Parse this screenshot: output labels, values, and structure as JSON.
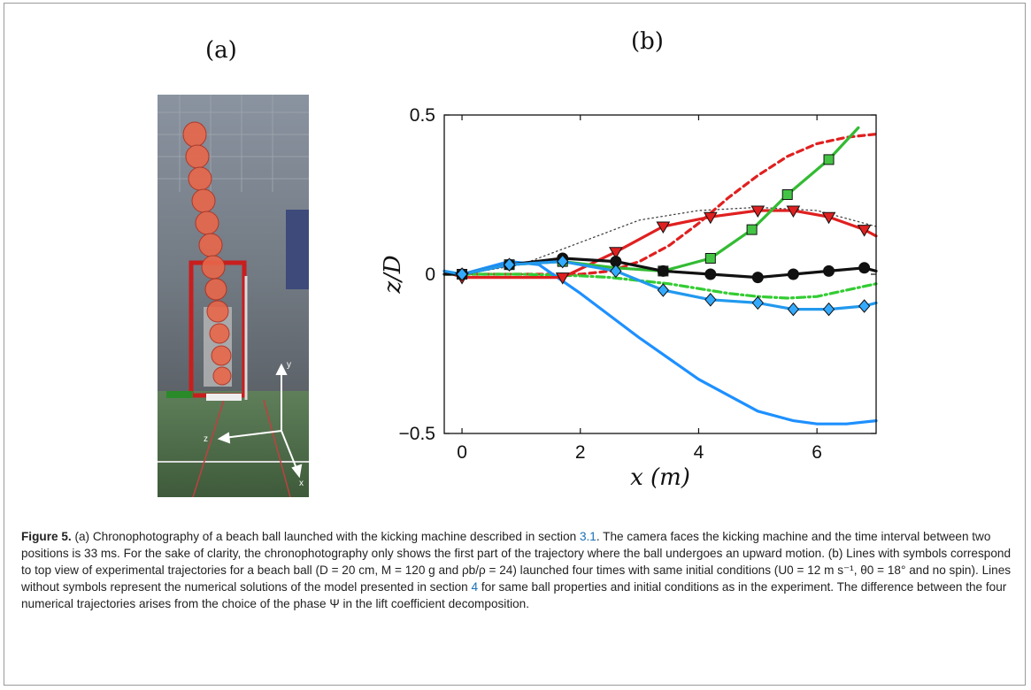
{
  "figure": {
    "panel_a_label": "(a)",
    "panel_b_label": "(b)",
    "photo": {
      "axis_y": "y",
      "axis_z": "z",
      "axis_x": "x"
    }
  },
  "chart_data": {
    "type": "line",
    "xlabel": "x (m)",
    "ylabel": "z/D",
    "xlim": [
      -0.3,
      7
    ],
    "ylim": [
      -0.5,
      0.5
    ],
    "xticks": [
      0,
      2,
      4,
      6
    ],
    "yticks": [
      -0.5,
      0,
      0.5
    ],
    "xtick_labels": [
      "0",
      "2",
      "4",
      "6"
    ],
    "ytick_labels": [
      "−0.5",
      "0",
      "0.5"
    ],
    "grid": false,
    "series": [
      {
        "kind": "model",
        "color": "#444444",
        "dash": "dotted",
        "marker": "none",
        "x": [
          0,
          1,
          2,
          3,
          4,
          5,
          6,
          7
        ],
        "y": [
          0,
          0.03,
          0.1,
          0.17,
          0.2,
          0.21,
          0.2,
          0.15
        ]
      },
      {
        "kind": "model",
        "color": "#e02020",
        "dash": "dashed",
        "marker": "none",
        "x": [
          0,
          1,
          2,
          2.5,
          3,
          3.5,
          4,
          4.5,
          5,
          5.5,
          6,
          6.5,
          7
        ],
        "y": [
          0,
          0,
          0,
          0.01,
          0.04,
          0.09,
          0.16,
          0.24,
          0.31,
          0.37,
          0.41,
          0.43,
          0.44
        ]
      },
      {
        "kind": "model",
        "color": "#33cc33",
        "dash": "dashdot",
        "marker": "none",
        "x": [
          0,
          1,
          2,
          2.5,
          3,
          3.5,
          4,
          4.5,
          5,
          5.5,
          6,
          6.5,
          7
        ],
        "y": [
          0,
          0,
          -0.005,
          -0.01,
          -0.02,
          -0.03,
          -0.045,
          -0.06,
          -0.07,
          -0.075,
          -0.07,
          -0.05,
          -0.03
        ]
      },
      {
        "kind": "model",
        "color": "#1e90ff",
        "dash": "solid",
        "marker": "none",
        "x": [
          0,
          0.8,
          1.3,
          2,
          3,
          4,
          5,
          5.6,
          6,
          6.5,
          7
        ],
        "y": [
          0,
          0.04,
          0.03,
          -0.06,
          -0.2,
          -0.33,
          -0.43,
          -0.46,
          -0.47,
          -0.47,
          -0.46
        ]
      },
      {
        "kind": "experiment",
        "color": "#e02020",
        "dash": "solid",
        "marker": "triangle-down",
        "x": [
          -0.3,
          0,
          0.8,
          1.7,
          2.6,
          3.4,
          4.2,
          5,
          5.6,
          6.2,
          6.8,
          7
        ],
        "y": [
          0.01,
          -0.01,
          -0.01,
          -0.01,
          0.07,
          0.15,
          0.18,
          0.2,
          0.2,
          0.18,
          0.14,
          0.12
        ],
        "markers_x": [
          0,
          1.7,
          2.6,
          3.4,
          4.2,
          5,
          5.6,
          6.2,
          6.8
        ],
        "markers_y": [
          -0.01,
          -0.01,
          0.07,
          0.15,
          0.18,
          0.2,
          0.2,
          0.18,
          0.14
        ]
      },
      {
        "kind": "experiment",
        "color": "#33bb33",
        "dash": "solid",
        "marker": "square",
        "x": [
          -0.3,
          0,
          0.8,
          1.7,
          2.6,
          3.4,
          4.2,
          4.9,
          5.5,
          6.2,
          6.7
        ],
        "y": [
          0,
          0,
          0.03,
          0.04,
          0.02,
          0.01,
          0.05,
          0.14,
          0.25,
          0.36,
          0.46
        ],
        "markers_x": [
          0,
          0.8,
          1.7,
          3.4,
          4.2,
          4.9,
          5.5,
          6.2
        ],
        "markers_y": [
          0,
          0.03,
          0.04,
          0.01,
          0.05,
          0.14,
          0.25,
          0.36
        ]
      },
      {
        "kind": "experiment",
        "color": "#111111",
        "dash": "solid",
        "marker": "circle",
        "x": [
          -0.3,
          0,
          0.8,
          1.7,
          2.6,
          3.4,
          4.2,
          5,
          5.6,
          6.2,
          6.8,
          7
        ],
        "y": [
          0,
          0,
          0.03,
          0.05,
          0.04,
          0.01,
          0,
          -0.01,
          0,
          0.01,
          0.02,
          0.01
        ],
        "markers_x": [
          0,
          0.8,
          1.7,
          2.6,
          3.4,
          4.2,
          5,
          5.6,
          6.2,
          6.8
        ],
        "markers_y": [
          0,
          0.03,
          0.05,
          0.04,
          0.01,
          0,
          -0.01,
          0,
          0.01,
          0.02
        ]
      },
      {
        "kind": "experiment",
        "color": "#2299ee",
        "dash": "solid",
        "marker": "diamond",
        "x": [
          -0.3,
          0,
          0.8,
          1.7,
          2.6,
          3.4,
          4.2,
          5,
          5.6,
          6.2,
          6.8,
          7
        ],
        "y": [
          0.01,
          0,
          0.03,
          0.04,
          0.01,
          -0.05,
          -0.08,
          -0.09,
          -0.11,
          -0.11,
          -0.1,
          -0.09
        ],
        "markers_x": [
          0,
          0.8,
          1.7,
          2.6,
          3.4,
          4.2,
          5,
          5.6,
          6.2,
          6.8
        ],
        "markers_y": [
          0,
          0.03,
          0.04,
          0.01,
          -0.05,
          -0.08,
          -0.09,
          -0.11,
          -0.11,
          -0.1
        ]
      }
    ]
  },
  "caption": {
    "label": "Figure 5.",
    "parts": [
      "(a) Chronophotography of a beach ball launched with the kicking machine described in section ",
      "3.1",
      ". The camera faces the kicking machine and the time interval between two positions is 33 ms. For the sake of clarity, the chronophotography only shows the first part of the trajectory where the ball undergoes an upward motion. (b) Lines with symbols correspond to top view of experimental trajectories for a beach ball (",
      "D = 20 cm, M = 120 g and ρb/ρ = 24",
      ") launched four times with same initial conditions (",
      "U0 = 12 m s⁻¹, θ0 = 18°",
      " and no spin). Lines without symbols represent the numerical solutions of the model presented in section ",
      "4",
      " for same ball properties and initial conditions as in the experiment. The difference between the four numerical trajectories arises from the choice of the phase Ψ in the lift coefficient decomposition."
    ]
  }
}
